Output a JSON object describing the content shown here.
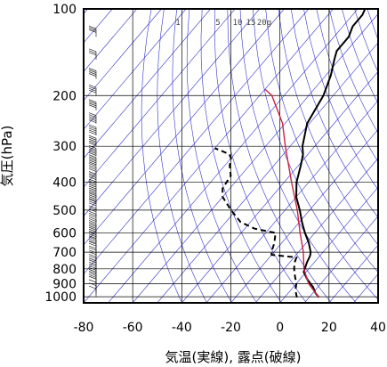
{
  "chart_data": {
    "type": "line",
    "title": "",
    "xlabel": "気温(実線), 露点(破線)",
    "ylabel": "気圧(hPa)",
    "xlim": [
      -80,
      40
    ],
    "ylim_pressure": [
      1050,
      100
    ],
    "y_scale": "log-pressure (skew-T)",
    "grid": true,
    "x_ticks": [
      "-80",
      "-60",
      "-40",
      "-20",
      "0",
      "20",
      "40"
    ],
    "y_ticks": [
      "100",
      "200",
      "300",
      "400",
      "500",
      "600",
      "700",
      "800",
      "900",
      "1000"
    ],
    "mixing_ratio_labels": [
      "1",
      "5",
      "10",
      "15",
      "20g"
    ],
    "series": [
      {
        "role": "temperature",
        "style": "solid",
        "color": "#000000",
        "points": [
          {
            "p": 1005,
            "t": 14
          },
          {
            "p": 970,
            "t": 11
          },
          {
            "p": 925,
            "t": 8
          },
          {
            "p": 870,
            "t": 3
          },
          {
            "p": 820,
            "t": -1
          },
          {
            "p": 760,
            "t": -3
          },
          {
            "p": 720,
            "t": -4
          },
          {
            "p": 700,
            "t": -5
          },
          {
            "p": 650,
            "t": -9
          },
          {
            "p": 600,
            "t": -14
          },
          {
            "p": 550,
            "t": -19
          },
          {
            "p": 500,
            "t": -24
          },
          {
            "p": 450,
            "t": -30
          },
          {
            "p": 400,
            "t": -35
          },
          {
            "p": 350,
            "t": -39
          },
          {
            "p": 320,
            "t": -42
          },
          {
            "p": 300,
            "t": -45
          },
          {
            "p": 250,
            "t": -51
          },
          {
            "p": 200,
            "t": -54
          },
          {
            "p": 170,
            "t": -58
          },
          {
            "p": 150,
            "t": -62
          },
          {
            "p": 140,
            "t": -64
          },
          {
            "p": 125,
            "t": -64
          },
          {
            "p": 115,
            "t": -66
          },
          {
            "p": 105,
            "t": -66
          },
          {
            "p": 100,
            "t": -67
          }
        ]
      },
      {
        "role": "dewpoint",
        "style": "dashed",
        "color": "#000000",
        "points": [
          {
            "p": 1005,
            "t": 5
          },
          {
            "p": 950,
            "t": 2
          },
          {
            "p": 900,
            "t": 0
          },
          {
            "p": 850,
            "t": -3
          },
          {
            "p": 800,
            "t": -6
          },
          {
            "p": 760,
            "t": -8
          },
          {
            "p": 730,
            "t": -9
          },
          {
            "p": 715,
            "t": -20
          },
          {
            "p": 700,
            "t": -21
          },
          {
            "p": 650,
            "t": -23
          },
          {
            "p": 600,
            "t": -26
          },
          {
            "p": 580,
            "t": -36
          },
          {
            "p": 550,
            "t": -44
          },
          {
            "p": 500,
            "t": -52
          },
          {
            "p": 450,
            "t": -60
          },
          {
            "p": 420,
            "t": -63
          },
          {
            "p": 380,
            "t": -64
          },
          {
            "p": 350,
            "t": -68
          },
          {
            "p": 330,
            "t": -70
          },
          {
            "p": 320,
            "t": -72
          },
          {
            "p": 310,
            "t": -77
          },
          {
            "p": 305,
            "t": -80
          }
        ]
      },
      {
        "role": "parcel",
        "style": "solid",
        "color": "#cc2244",
        "points": [
          {
            "p": 1005,
            "t": 14
          },
          {
            "p": 900,
            "t": 5
          },
          {
            "p": 800,
            "t": -2
          },
          {
            "p": 700,
            "t": -8
          },
          {
            "p": 600,
            "t": -16
          },
          {
            "p": 500,
            "t": -25
          },
          {
            "p": 400,
            "t": -37
          },
          {
            "p": 300,
            "t": -52
          },
          {
            "p": 250,
            "t": -61
          },
          {
            "p": 220,
            "t": -69
          },
          {
            "p": 200,
            "t": -75
          },
          {
            "p": 190,
            "t": -80
          }
        ]
      }
    ],
    "wind_barbs": [
      {
        "p": 1000,
        "speed": 10
      },
      {
        "p": 975,
        "speed": 10
      },
      {
        "p": 950,
        "speed": 10
      },
      {
        "p": 925,
        "speed": 10
      },
      {
        "p": 900,
        "speed": 15
      },
      {
        "p": 875,
        "speed": 15
      },
      {
        "p": 850,
        "speed": 15
      },
      {
        "p": 825,
        "speed": 15
      },
      {
        "p": 800,
        "speed": 15
      },
      {
        "p": 775,
        "speed": 20
      },
      {
        "p": 750,
        "speed": 20
      },
      {
        "p": 725,
        "speed": 20
      },
      {
        "p": 700,
        "speed": 20
      },
      {
        "p": 675,
        "speed": 25
      },
      {
        "p": 650,
        "speed": 25
      },
      {
        "p": 625,
        "speed": 25
      },
      {
        "p": 600,
        "speed": 25
      },
      {
        "p": 575,
        "speed": 25
      },
      {
        "p": 550,
        "speed": 30
      },
      {
        "p": 525,
        "speed": 30
      },
      {
        "p": 500,
        "speed": 30
      },
      {
        "p": 475,
        "speed": 35
      },
      {
        "p": 450,
        "speed": 35
      },
      {
        "p": 425,
        "speed": 35
      },
      {
        "p": 400,
        "speed": 40
      },
      {
        "p": 375,
        "speed": 40
      },
      {
        "p": 350,
        "speed": 45
      },
      {
        "p": 325,
        "speed": 45
      },
      {
        "p": 300,
        "speed": 45
      },
      {
        "p": 275,
        "speed": 45
      },
      {
        "p": 250,
        "speed": 45
      },
      {
        "p": 225,
        "speed": 40
      },
      {
        "p": 200,
        "speed": 40
      },
      {
        "p": 175,
        "speed": 35
      },
      {
        "p": 150,
        "speed": 30
      },
      {
        "p": 125,
        "speed": 25
      },
      {
        "p": 100,
        "speed": 20
      }
    ],
    "colors": {
      "reference_lines": "#3333cc",
      "grid": "#000000",
      "temperature": "#000000",
      "dewpoint": "#000000",
      "parcel": "#cc2244"
    }
  }
}
